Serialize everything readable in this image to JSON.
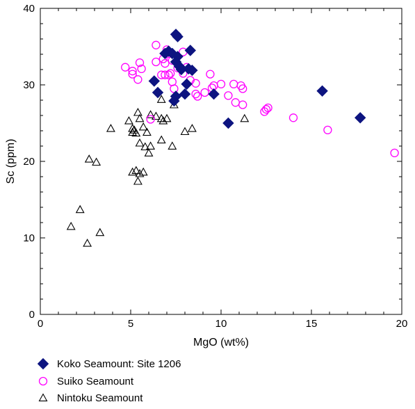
{
  "chart_data": {
    "type": "scatter",
    "xlabel": "MgO (wt%)",
    "ylabel": "Sc (ppm)",
    "xlim": [
      0,
      20
    ],
    "ylim": [
      0,
      40
    ],
    "x_ticks": [
      0,
      5,
      10,
      15,
      20
    ],
    "y_ticks": [
      0,
      10,
      20,
      30,
      40
    ],
    "x_tick_labels": [
      "0",
      "5",
      "10",
      "15",
      "20"
    ],
    "y_tick_labels": [
      "0",
      "10",
      "20",
      "30",
      "40"
    ],
    "grid": false,
    "legend_position": "bottom-left",
    "series": [
      {
        "name": "Koko Seamount: Site 1206",
        "marker": "filled-diamond",
        "color": "#0d1480",
        "points": [
          [
            7.5,
            36.6
          ],
          [
            7.6,
            36.3
          ],
          [
            6.9,
            34.1
          ],
          [
            7.1,
            34.4
          ],
          [
            7.3,
            34.1
          ],
          [
            7.6,
            33.7
          ],
          [
            8.3,
            34.5
          ],
          [
            7.5,
            33.0
          ],
          [
            7.7,
            32.4
          ],
          [
            7.8,
            32.0
          ],
          [
            8.2,
            32.1
          ],
          [
            8.4,
            31.9
          ],
          [
            6.3,
            30.5
          ],
          [
            8.1,
            30.1
          ],
          [
            6.5,
            29.0
          ],
          [
            7.5,
            28.5
          ],
          [
            8.0,
            28.8
          ],
          [
            9.6,
            28.8
          ],
          [
            7.4,
            27.9
          ],
          [
            10.4,
            25.0
          ],
          [
            15.6,
            29.2
          ],
          [
            17.7,
            25.7
          ]
        ]
      },
      {
        "name": "Suiko Seamount",
        "marker": "open-circle",
        "color": "#ff00ff",
        "points": [
          [
            4.7,
            32.3
          ],
          [
            5.1,
            31.8
          ],
          [
            5.1,
            31.4
          ],
          [
            5.4,
            30.7
          ],
          [
            5.5,
            32.9
          ],
          [
            5.6,
            32.1
          ],
          [
            6.4,
            35.2
          ],
          [
            6.4,
            33.0
          ],
          [
            6.8,
            33.4
          ],
          [
            6.7,
            31.3
          ],
          [
            6.9,
            31.3
          ],
          [
            6.9,
            32.8
          ],
          [
            7.0,
            34.6
          ],
          [
            7.1,
            34.1
          ],
          [
            7.1,
            31.3
          ],
          [
            7.2,
            31.5
          ],
          [
            7.3,
            33.2
          ],
          [
            7.3,
            30.4
          ],
          [
            7.4,
            29.5
          ],
          [
            7.6,
            32.2
          ],
          [
            7.9,
            34.3
          ],
          [
            7.9,
            31.5
          ],
          [
            8.1,
            32.3
          ],
          [
            8.3,
            30.6
          ],
          [
            8.6,
            30.2
          ],
          [
            8.6,
            28.8
          ],
          [
            8.7,
            28.5
          ],
          [
            9.1,
            29.0
          ],
          [
            9.4,
            31.4
          ],
          [
            9.6,
            29.9
          ],
          [
            9.5,
            29.6
          ],
          [
            10.0,
            30.1
          ],
          [
            10.4,
            28.6
          ],
          [
            10.7,
            30.1
          ],
          [
            10.8,
            27.7
          ],
          [
            11.1,
            29.9
          ],
          [
            11.2,
            29.5
          ],
          [
            11.2,
            27.4
          ],
          [
            12.4,
            26.5
          ],
          [
            12.5,
            26.8
          ],
          [
            12.6,
            27.0
          ],
          [
            14.0,
            25.7
          ],
          [
            15.9,
            24.1
          ],
          [
            19.6,
            21.1
          ],
          [
            6.1,
            25.5
          ]
        ]
      },
      {
        "name": "Nintoku Seamount",
        "marker": "open-triangle",
        "color": "#000000",
        "points": [
          [
            1.7,
            11.5
          ],
          [
            2.2,
            13.7
          ],
          [
            2.6,
            9.3
          ],
          [
            3.3,
            10.7
          ],
          [
            2.7,
            20.3
          ],
          [
            3.1,
            19.9
          ],
          [
            3.9,
            24.3
          ],
          [
            4.9,
            25.3
          ],
          [
            5.1,
            24.3
          ],
          [
            5.1,
            23.8
          ],
          [
            5.2,
            24.1
          ],
          [
            5.3,
            23.7
          ],
          [
            5.4,
            26.4
          ],
          [
            5.5,
            25.6
          ],
          [
            5.7,
            24.5
          ],
          [
            5.5,
            22.4
          ],
          [
            5.8,
            21.9
          ],
          [
            5.9,
            23.8
          ],
          [
            6.1,
            26.1
          ],
          [
            6.1,
            22.0
          ],
          [
            6.0,
            21.1
          ],
          [
            6.4,
            25.9
          ],
          [
            6.7,
            25.6
          ],
          [
            6.8,
            25.3
          ],
          [
            6.7,
            28.1
          ],
          [
            6.7,
            22.8
          ],
          [
            7.0,
            25.6
          ],
          [
            7.3,
            22.0
          ],
          [
            7.4,
            27.4
          ],
          [
            8.0,
            23.9
          ],
          [
            8.4,
            24.3
          ],
          [
            11.3,
            25.6
          ],
          [
            5.1,
            18.6
          ],
          [
            5.3,
            18.8
          ],
          [
            5.5,
            18.4
          ],
          [
            5.7,
            18.6
          ],
          [
            5.4,
            17.4
          ]
        ]
      }
    ]
  }
}
